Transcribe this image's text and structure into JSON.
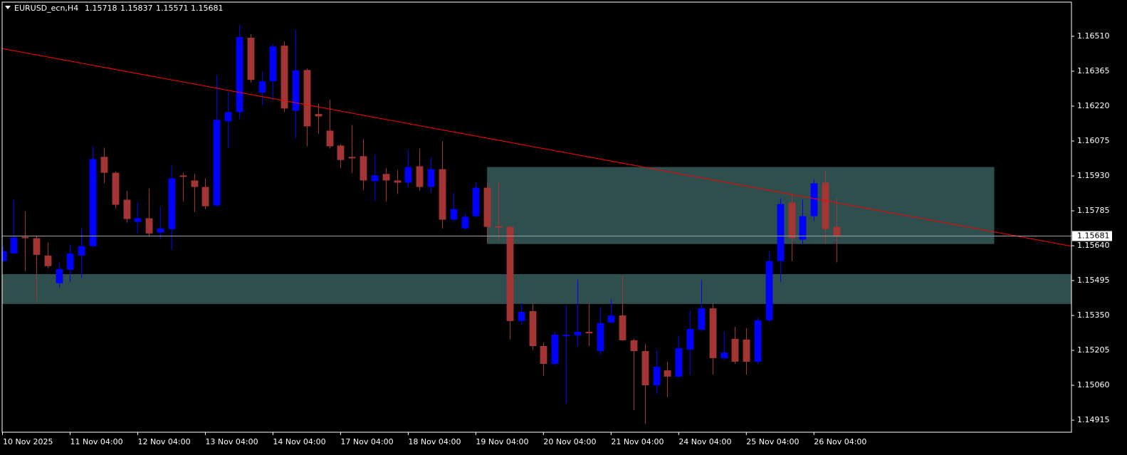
{
  "chart_data": {
    "type": "candlestick",
    "title": "EURUSD_ecn,H4",
    "categories": [
      "10 Nov 2025",
      null,
      null,
      null,
      null,
      null,
      "11 Nov 04:00",
      null,
      null,
      null,
      null,
      null,
      "12 Nov 04:00",
      null,
      null,
      null,
      null,
      null,
      "13 Nov 04:00",
      null,
      null,
      null,
      null,
      null,
      "14 Nov 04:00",
      null,
      null,
      null,
      null,
      null,
      "17 Nov 04:00",
      null,
      null,
      null,
      null,
      null,
      "18 Nov 04:00",
      null,
      null,
      null,
      null,
      null,
      "19 Nov 04:00",
      null,
      null,
      null,
      null,
      null,
      "20 Nov 04:00",
      null,
      null,
      null,
      null,
      null,
      "21 Nov 04:00",
      null,
      null,
      null,
      null,
      null,
      "24 Nov 04:00",
      null,
      null,
      null,
      null,
      null,
      "25 Nov 04:00",
      null,
      null,
      null,
      null,
      null,
      "26 Nov 04:00",
      null,
      null
    ],
    "open": [
      1.15576,
      1.15608,
      1.15677,
      1.15671,
      1.15599,
      1.15484,
      1.1554,
      1.15599,
      1.15638,
      1.16009,
      1.15943,
      1.15831,
      1.15739,
      1.15754,
      1.15694,
      1.15709,
      1.15932,
      1.15911,
      1.15884,
      1.15807,
      1.16157,
      1.16195,
      1.16504,
      1.16276,
      1.16323,
      1.16471,
      1.16201,
      1.1637,
      1.16187,
      1.16118,
      1.16056,
      1.16009,
      1.16012,
      1.15908,
      1.15938,
      1.15911,
      1.15902,
      1.1597,
      1.15884,
      1.15958,
      1.15748,
      1.15712,
      1.15763,
      1.15881,
      1.15721,
      1.15718,
      1.15327,
      1.15368,
      1.15223,
      1.15149,
      1.15264,
      1.15267,
      1.15282,
      1.15202,
      1.15321,
      1.1535,
      1.15247,
      1.15202,
      1.1506,
      1.15122,
      1.15096,
      1.15208,
      1.15291,
      1.1538,
      1.15173,
      1.15253,
      1.1525,
      1.15158,
      1.1533,
      1.15576,
      1.15819,
      1.15665,
      1.15763,
      1.15902,
      1.15718
    ],
    "high": [
      1.15638,
      1.15831,
      1.15783,
      1.15682,
      1.15653,
      1.1557,
      1.15644,
      1.15712,
      1.16053,
      1.16047,
      1.15949,
      1.15869,
      1.15822,
      1.15878,
      1.15801,
      1.15973,
      1.15943,
      1.15938,
      1.1592,
      1.1635,
      1.16276,
      1.16557,
      1.16519,
      1.16364,
      1.16477,
      1.16489,
      1.16537,
      1.16376,
      1.16231,
      1.16246,
      1.16062,
      1.16142,
      1.16083,
      1.16018,
      1.15961,
      1.15955,
      1.16038,
      1.16044,
      1.16009,
      1.16074,
      1.1586,
      1.15777,
      1.15905,
      1.15902,
      1.15905,
      1.15724,
      1.15401,
      1.15401,
      1.15238,
      1.15282,
      1.15392,
      1.15499,
      1.15401,
      1.15386,
      1.15416,
      1.15514,
      1.15253,
      1.15232,
      1.15208,
      1.15158,
      1.15267,
      1.15371,
      1.15499,
      1.15401,
      1.15282,
      1.15303,
      1.15297,
      1.15339,
      1.15617,
      1.15837,
      1.15855,
      1.15831,
      1.15914,
      1.15952,
      1.15837
    ],
    "low": [
      1.1557,
      1.15605,
      1.15534,
      1.1541,
      1.15546,
      1.15466,
      1.1549,
      1.15505,
      1.15632,
      1.15899,
      1.15795,
      1.15736,
      1.15691,
      1.15677,
      1.15668,
      1.15623,
      1.15825,
      1.1578,
      1.15792,
      1.15804,
      1.16044,
      1.16166,
      1.16317,
      1.16222,
      1.16246,
      1.16195,
      1.16086,
      1.16053,
      1.16104,
      1.16044,
      1.15961,
      1.15943,
      1.15872,
      1.15825,
      1.15825,
      1.15855,
      1.15884,
      1.15869,
      1.1586,
      1.15712,
      1.15742,
      1.15706,
      1.15757,
      1.15653,
      1.15662,
      1.1525,
      1.15312,
      1.15208,
      1.15098,
      1.15143,
      1.14986,
      1.15223,
      1.15223,
      1.15187,
      1.15318,
      1.15244,
      1.14956,
      1.149,
      1.15024,
      1.1501,
      1.1509,
      1.15104,
      1.15282,
      1.15104,
      1.15164,
      1.15149,
      1.15104,
      1.15149,
      1.15324,
      1.1549,
      1.15576,
      1.15647,
      1.15742,
      1.15647,
      1.15571
    ],
    "close": [
      1.15617,
      1.15674,
      1.15671,
      1.15602,
      1.15555,
      1.15543,
      1.15608,
      1.15638,
      1.16,
      1.15943,
      1.1581,
      1.15751,
      1.15754,
      1.15691,
      1.15712,
      1.1592,
      1.15926,
      1.15884,
      1.15804,
      1.16163,
      1.16195,
      1.16507,
      1.16329,
      1.16323,
      1.16468,
      1.1621,
      1.16368,
      1.16136,
      1.16177,
      1.16053,
      1.15996,
      1.16003,
      1.15911,
      1.15932,
      1.15911,
      1.15902,
      1.15967,
      1.15884,
      1.15958,
      1.15748,
      1.15792,
      1.1576,
      1.15881,
      1.15718,
      1.15715,
      1.15327,
      1.15365,
      1.15223,
      1.15149,
      1.1527,
      1.1527,
      1.15282,
      1.15276,
      1.15318,
      1.1535,
      1.15247,
      1.15202,
      1.1506,
      1.15137,
      1.15096,
      1.15214,
      1.15294,
      1.1538,
      1.15173,
      1.15196,
      1.15158,
      1.15158,
      1.1533,
      1.15576,
      1.15813,
      1.15671,
      1.15763,
      1.15899,
      1.15709,
      1.15681
    ],
    "up_color": "#0000ff",
    "down_color": "#a33535",
    "xlim": [
      0,
      94.85
    ],
    "ylim": [
      1.14865,
      1.16652
    ],
    "yticks": [
      {
        "value": 1.1651,
        "label": "1.16510"
      },
      {
        "value": 1.16365,
        "label": "1.16365"
      },
      {
        "value": 1.1622,
        "label": "1.16220"
      },
      {
        "value": 1.16075,
        "label": "1.16075"
      },
      {
        "value": 1.1593,
        "label": "1.15930"
      },
      {
        "value": 1.15785,
        "label": "1.15785"
      },
      {
        "value": 1.1564,
        "label": "1.15640"
      },
      {
        "value": 1.15495,
        "label": "1.15495"
      },
      {
        "value": 1.1535,
        "label": "1.15350"
      },
      {
        "value": 1.15205,
        "label": "1.15205"
      },
      {
        "value": 1.1506,
        "label": "1.15060"
      },
      {
        "value": 1.14915,
        "label": "1.14915"
      }
    ],
    "zones": [
      {
        "x": [
          43,
          88
        ],
        "ylim": [
          1.15647,
          1.15967
        ],
        "color": "#2f4f4f"
      },
      {
        "ylim": [
          1.15398,
          1.15522
        ],
        "color": "#2f4f4f"
      }
    ],
    "trendline": {
      "x": [
        0,
        94.85
      ],
      "y": [
        1.16459,
        1.15638
      ],
      "color": "#ff0000"
    },
    "bid_line_color": "#a0a0a0"
  }
}
